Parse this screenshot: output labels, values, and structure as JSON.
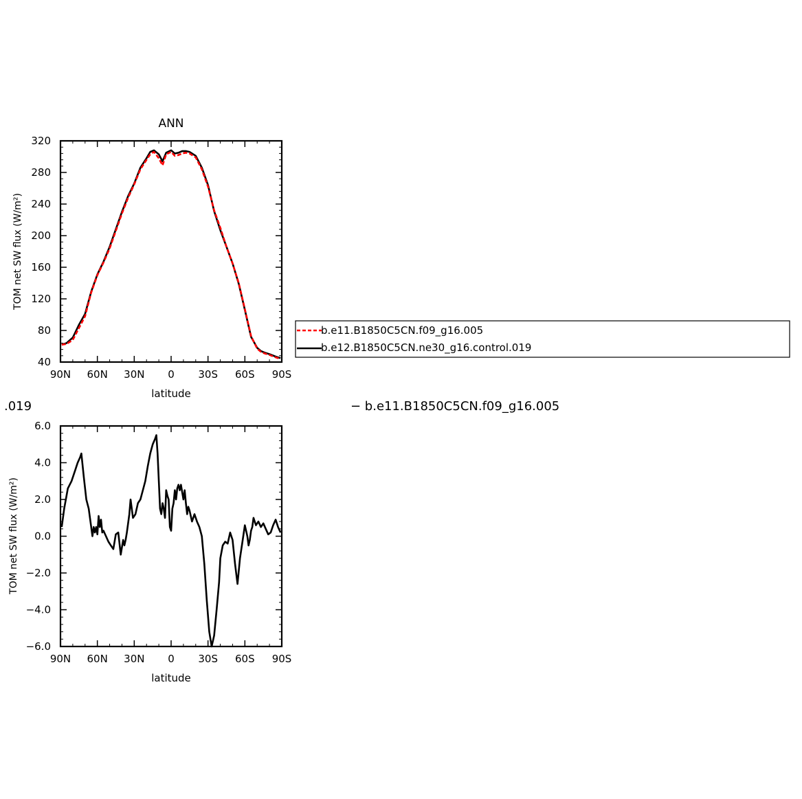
{
  "chart_data": [
    {
      "type": "line",
      "title": "ANN",
      "xlabel": "latitude",
      "ylabel": "TOM net SW flux (W/m²)",
      "xlim": [
        90,
        -90
      ],
      "ylim": [
        40,
        320
      ],
      "x_tick_labels": [
        "90N",
        "60N",
        "30N",
        "0",
        "30S",
        "60S",
        "90S"
      ],
      "y_tick_labels": [
        "40",
        "80",
        "120",
        "160",
        "200",
        "240",
        "280",
        "320"
      ],
      "legend_placement": "right",
      "series": [
        {
          "name": "b.e11.B1850C5CN.f09_g16.005",
          "color": "#ff0000",
          "dash": "dashed",
          "x": [
            89,
            85,
            80,
            75,
            70,
            65,
            60,
            55,
            50,
            45,
            40,
            35,
            30,
            25,
            20,
            17,
            14,
            10,
            7,
            4,
            0,
            -3,
            -6,
            -9,
            -12,
            -15,
            -20,
            -25,
            -30,
            -35,
            -40,
            -45,
            -50,
            -55,
            -60,
            -65,
            -70,
            -73,
            -76,
            -80,
            -85,
            -89
          ],
          "y": [
            62,
            63,
            68,
            83,
            98,
            128,
            150,
            166,
            184,
            206,
            228,
            248,
            265,
            284,
            296,
            303,
            306,
            298,
            289,
            303,
            306,
            301,
            302,
            304,
            305,
            304,
            299,
            284,
            262,
            232,
            210,
            186,
            165,
            140,
            107,
            73,
            57,
            53,
            51,
            49,
            46,
            44
          ]
        },
        {
          "name": "b.e12.B1850C5CN.ne30_g16.control.019",
          "color": "#000000",
          "dash": "solid",
          "x": [
            89,
            85,
            80,
            75,
            70,
            65,
            60,
            55,
            50,
            45,
            40,
            35,
            30,
            25,
            20,
            17,
            14,
            10,
            7,
            4,
            0,
            -3,
            -6,
            -9,
            -12,
            -15,
            -20,
            -25,
            -30,
            -35,
            -40,
            -45,
            -50,
            -55,
            -60,
            -65,
            -70,
            -73,
            -76,
            -80,
            -85,
            -89
          ],
          "y": [
            62,
            64,
            71,
            87,
            101,
            129,
            151,
            167,
            186,
            208,
            230,
            250,
            266,
            286,
            298,
            306,
            308,
            303,
            294,
            305,
            308,
            304,
            305,
            307,
            307,
            306,
            301,
            286,
            264,
            231,
            207,
            186,
            165,
            139,
            106,
            72,
            58,
            54,
            52,
            50,
            47,
            45
          ]
        }
      ]
    },
    {
      "type": "line",
      "title": "",
      "xlabel": "latitude",
      "ylabel": "TOM net SW flux (W/m²)",
      "xlim": [
        90,
        -90
      ],
      "ylim": [
        -6.0,
        6.0
      ],
      "x_tick_labels": [
        "90N",
        "60N",
        "30N",
        "0",
        "30S",
        "60S",
        "90S"
      ],
      "y_tick_labels": [
        "6.0",
        "4.0",
        "2.0",
        "0.0",
        "−2.0",
        "−4.0",
        "−6.0"
      ],
      "series": [
        {
          "color": "#000000",
          "dash": "solid",
          "x": [
            89,
            87,
            84,
            81,
            78,
            76,
            74,
            73,
            71,
            69,
            67,
            65,
            64,
            63,
            62,
            61,
            60,
            59,
            58,
            57,
            56,
            55,
            53,
            51,
            49,
            47,
            45,
            43,
            41,
            39,
            38,
            37,
            36,
            35,
            34,
            33,
            31,
            29,
            27,
            25,
            23,
            21,
            19,
            17,
            15,
            13,
            12,
            11,
            10,
            9,
            8,
            7,
            6,
            5,
            4,
            3,
            2,
            1,
            0,
            -1,
            -2,
            -3,
            -4,
            -5,
            -6,
            -7,
            -8,
            -9,
            -10,
            -11,
            -12,
            -13,
            -14,
            -15,
            -17,
            -19,
            -21,
            -23,
            -25,
            -27,
            -29,
            -31,
            -33,
            -35,
            -37,
            -39,
            -40,
            -42,
            -44,
            -46,
            -48,
            -50,
            -52,
            -54,
            -56,
            -58,
            -60,
            -62,
            -63,
            -64,
            -65,
            -66,
            -67,
            -69,
            -71,
            -73,
            -75,
            -77,
            -79,
            -81,
            -83,
            -85,
            -87,
            -89
          ],
          "y": [
            0.5,
            1.5,
            2.6,
            3.0,
            3.6,
            4.0,
            4.3,
            4.5,
            3.2,
            2.0,
            1.5,
            0.5,
            0.0,
            0.5,
            0.2,
            0.5,
            0.1,
            1.1,
            0.5,
            0.9,
            0.2,
            0.3,
            0.0,
            -0.3,
            -0.5,
            -0.7,
            0.1,
            0.2,
            -1.0,
            -0.2,
            -0.5,
            -0.2,
            0.2,
            0.7,
            1.2,
            2.0,
            1.0,
            1.2,
            1.8,
            2.0,
            2.5,
            3.0,
            3.8,
            4.5,
            5.0,
            5.3,
            5.5,
            4.5,
            3.0,
            1.5,
            1.2,
            1.8,
            1.5,
            1.0,
            2.5,
            2.2,
            2.0,
            0.5,
            0.3,
            1.5,
            1.8,
            2.5,
            2.0,
            2.6,
            2.8,
            2.5,
            2.8,
            2.4,
            2.0,
            2.5,
            1.8,
            1.2,
            1.6,
            1.4,
            0.8,
            1.2,
            0.8,
            0.5,
            0.0,
            -1.5,
            -3.5,
            -5.2,
            -6.0,
            -5.4,
            -4.0,
            -2.5,
            -1.2,
            -0.5,
            -0.3,
            -0.4,
            0.2,
            -0.2,
            -1.5,
            -2.6,
            -1.2,
            -0.3,
            0.6,
            0.0,
            -0.5,
            -0.2,
            0.3,
            0.5,
            1.0,
            0.6,
            0.8,
            0.5,
            0.7,
            0.4,
            0.1,
            0.2,
            0.6,
            0.9,
            0.5,
            0.2
          ]
        }
      ]
    }
  ],
  "legend": {
    "items": [
      {
        "label": "b.e11.B1850C5CN.f09_g16.005"
      },
      {
        "label": "b.e12.B1850C5CN.ne30_g16.control.019"
      }
    ]
  },
  "fragments": {
    "left": ".019",
    "right": "− b.e11.B1850C5CN.f09_g16.005"
  }
}
